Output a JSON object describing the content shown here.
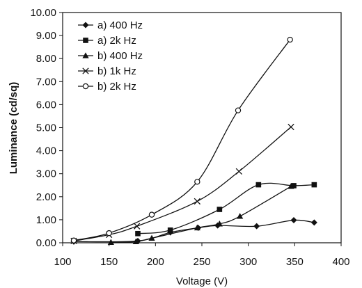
{
  "chart_data": {
    "type": "line",
    "title": "",
    "xlabel": "Voltage (V)",
    "ylabel": "Luminance (cd/sq)",
    "xlim": [
      100,
      400
    ],
    "ylim": [
      0,
      10
    ],
    "x_ticks": [
      "100",
      "150",
      "200",
      "250",
      "300",
      "350",
      "400"
    ],
    "y_ticks": [
      "0.00",
      "1.00",
      "2.00",
      "3.00",
      "4.00",
      "5.00",
      "6.00",
      "7.00",
      "8.00",
      "9.00",
      "10.00"
    ],
    "grid": false,
    "legend_position": "top-left",
    "smoothed": true,
    "series": [
      {
        "name": "a) 400 Hz",
        "marker": "diamond",
        "color": "#111111",
        "x": [
          112,
          181,
          216,
          246,
          267,
          309,
          349,
          371
        ],
        "y": [
          0.05,
          0.08,
          0.45,
          0.65,
          0.75,
          0.72,
          0.98,
          0.88
        ]
      },
      {
        "name": "a) 2k Hz",
        "marker": "square",
        "color": "#111111",
        "x": [
          181,
          216,
          269,
          311,
          349,
          371
        ],
        "y": [
          0.4,
          0.55,
          1.45,
          2.52,
          2.48,
          2.52
        ]
      },
      {
        "name": "b) 400 Hz",
        "marker": "triangle",
        "color": "#111111",
        "x": [
          152,
          179,
          196,
          245,
          269,
          291,
          346
        ],
        "y": [
          0.02,
          0.05,
          0.2,
          0.65,
          0.82,
          1.15,
          2.45
        ]
      },
      {
        "name": "b) 1k Hz",
        "marker": "x",
        "color": "#111111",
        "x": [
          112,
          150,
          180,
          245,
          290,
          346
        ],
        "y": [
          0.08,
          0.35,
          0.72,
          1.8,
          3.1,
          5.03
        ]
      },
      {
        "name": "b) 2k Hz",
        "marker": "circle",
        "color": "#111111",
        "x": [
          112,
          150,
          196,
          245,
          289,
          345
        ],
        "y": [
          0.1,
          0.42,
          1.22,
          2.65,
          5.75,
          8.82
        ]
      }
    ]
  }
}
